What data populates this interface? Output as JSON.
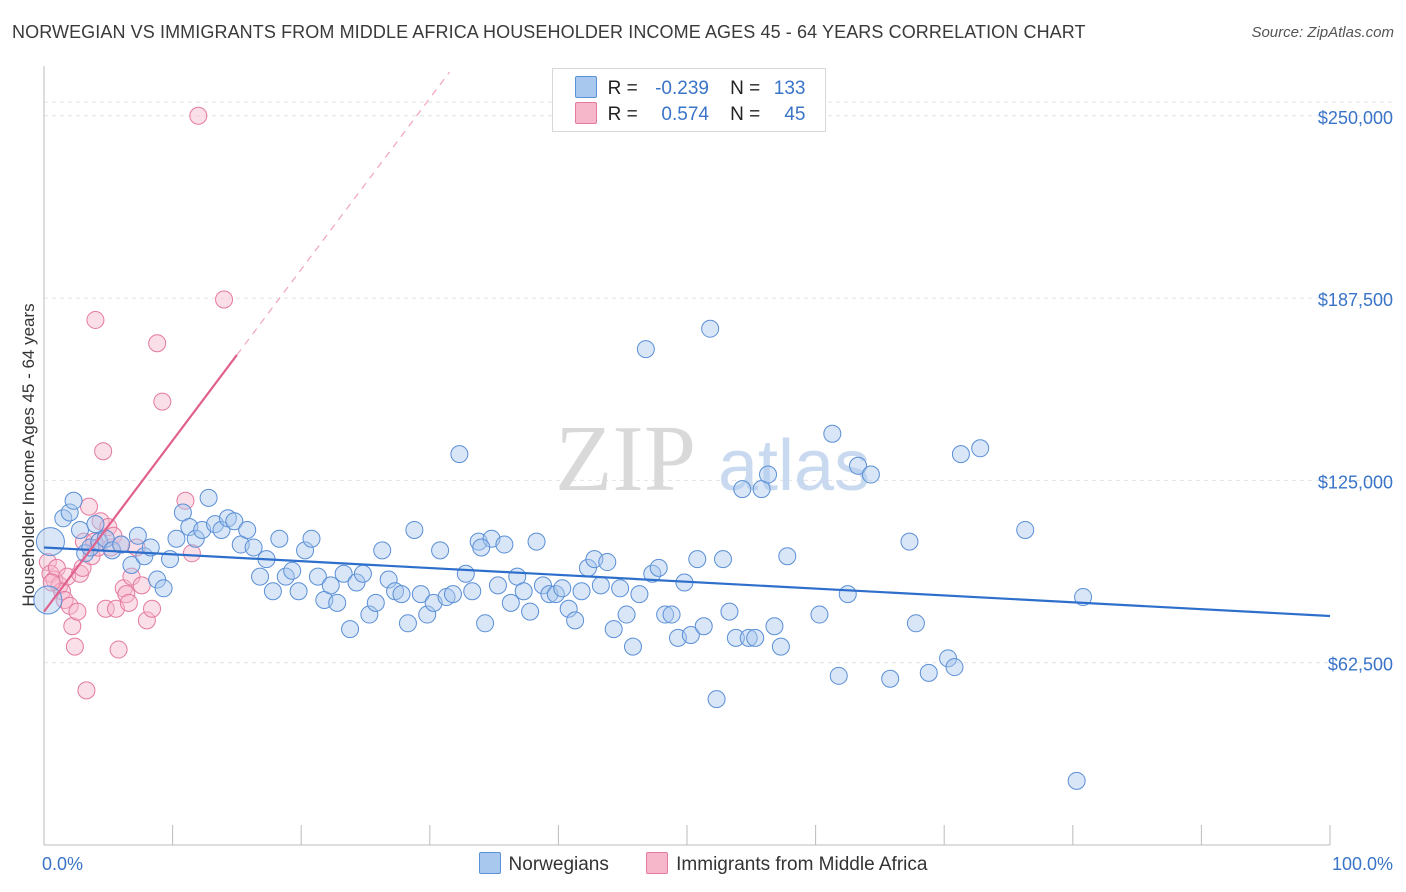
{
  "header": {
    "title": "NORWEGIAN VS IMMIGRANTS FROM MIDDLE AFRICA HOUSEHOLDER INCOME AGES 45 - 64 YEARS CORRELATION CHART",
    "source": "Source: ZipAtlas.com"
  },
  "legend_box": {
    "r_label": "R =",
    "n_label": "N =",
    "rows": [
      {
        "r": "-0.239",
        "n": "133"
      },
      {
        "r": "0.574",
        "n": "45"
      }
    ]
  },
  "bottom_legend": {
    "items": [
      "Norwegians",
      "Immigrants from Middle Africa"
    ]
  },
  "watermark": {
    "zip": "ZIP",
    "atlas": "atlas"
  },
  "colors": {
    "blue_fill": "#a9c8ee",
    "blue_stroke": "#5b8fd6",
    "blue_line": "#2e6fcc",
    "pink_fill": "#f6b7cb",
    "pink_stroke": "#e47aa0",
    "pink_line": "#e0608e",
    "axis_label": "#3a74c8",
    "grid": "#e3e3e3"
  },
  "chart_data": {
    "type": "scatter",
    "title": "NORWEGIAN VS IMMIGRANTS FROM MIDDLE AFRICA HOUSEHOLDER INCOME AGES 45 - 64 YEARS CORRELATION CHART",
    "xlabel": "",
    "ylabel": "Householder Income Ages 45 - 64 years",
    "xlim": [
      0,
      100
    ],
    "ylim": [
      0,
      265000
    ],
    "x_tick_labels": [
      "0.0%",
      "100.0%"
    ],
    "y_ticks": [
      62500,
      125000,
      187500,
      250000
    ],
    "y_tick_labels": [
      "$62,500",
      "$125,000",
      "$187,500",
      "$250,000"
    ],
    "series": [
      {
        "name": "Norwegians",
        "r": -0.239,
        "n": 133,
        "trend": {
          "x": [
            0,
            100
          ],
          "y": [
            102000,
            78500
          ]
        },
        "points": [
          [
            0.3,
            84000
          ],
          [
            0.5,
            104000
          ],
          [
            1.5,
            112000
          ],
          [
            2.0,
            114000
          ],
          [
            2.3,
            118000
          ],
          [
            2.8,
            108000
          ],
          [
            3.2,
            100000
          ],
          [
            3.6,
            102000
          ],
          [
            4.0,
            110000
          ],
          [
            4.3,
            104000
          ],
          [
            4.8,
            105000
          ],
          [
            5.3,
            101000
          ],
          [
            6.0,
            103000
          ],
          [
            6.8,
            96000
          ],
          [
            7.3,
            106000
          ],
          [
            7.8,
            99000
          ],
          [
            8.3,
            102000
          ],
          [
            8.8,
            91000
          ],
          [
            9.3,
            88000
          ],
          [
            9.8,
            98000
          ],
          [
            10.3,
            105000
          ],
          [
            10.8,
            114000
          ],
          [
            11.3,
            109000
          ],
          [
            11.8,
            105000
          ],
          [
            12.3,
            108000
          ],
          [
            12.8,
            119000
          ],
          [
            13.3,
            110000
          ],
          [
            13.8,
            108000
          ],
          [
            14.3,
            112000
          ],
          [
            14.8,
            111000
          ],
          [
            15.3,
            103000
          ],
          [
            15.8,
            108000
          ],
          [
            16.3,
            102000
          ],
          [
            16.8,
            92000
          ],
          [
            17.3,
            98000
          ],
          [
            17.8,
            87000
          ],
          [
            18.3,
            105000
          ],
          [
            18.8,
            92000
          ],
          [
            19.3,
            94000
          ],
          [
            19.8,
            87000
          ],
          [
            20.3,
            101000
          ],
          [
            20.8,
            105000
          ],
          [
            21.3,
            92000
          ],
          [
            21.8,
            84000
          ],
          [
            22.3,
            89000
          ],
          [
            22.8,
            83000
          ],
          [
            23.3,
            93000
          ],
          [
            23.8,
            74000
          ],
          [
            24.3,
            90000
          ],
          [
            24.8,
            93000
          ],
          [
            25.3,
            79000
          ],
          [
            25.8,
            83000
          ],
          [
            26.3,
            101000
          ],
          [
            26.8,
            91000
          ],
          [
            27.3,
            87000
          ],
          [
            27.8,
            86000
          ],
          [
            28.3,
            76000
          ],
          [
            28.8,
            108000
          ],
          [
            29.3,
            86000
          ],
          [
            29.8,
            79000
          ],
          [
            30.3,
            83000
          ],
          [
            30.8,
            101000
          ],
          [
            31.3,
            85000
          ],
          [
            31.8,
            86000
          ],
          [
            32.3,
            134000
          ],
          [
            32.8,
            93000
          ],
          [
            33.3,
            87000
          ],
          [
            33.8,
            104000
          ],
          [
            34.3,
            76000
          ],
          [
            34.8,
            105000
          ],
          [
            35.3,
            89000
          ],
          [
            35.8,
            103000
          ],
          [
            36.3,
            83000
          ],
          [
            36.8,
            92000
          ],
          [
            37.3,
            87000
          ],
          [
            37.8,
            80000
          ],
          [
            38.3,
            104000
          ],
          [
            38.8,
            89000
          ],
          [
            39.3,
            86000
          ],
          [
            39.8,
            86000
          ],
          [
            40.3,
            88000
          ],
          [
            40.8,
            81000
          ],
          [
            41.3,
            77000
          ],
          [
            41.8,
            87000
          ],
          [
            42.3,
            95000
          ],
          [
            42.8,
            98000
          ],
          [
            43.3,
            89000
          ],
          [
            43.8,
            97000
          ],
          [
            44.3,
            74000
          ],
          [
            44.8,
            88000
          ],
          [
            45.3,
            79000
          ],
          [
            45.8,
            68000
          ],
          [
            46.3,
            86000
          ],
          [
            46.8,
            170000
          ],
          [
            47.3,
            93000
          ],
          [
            47.8,
            95000
          ],
          [
            48.3,
            79000
          ],
          [
            48.8,
            79000
          ],
          [
            49.3,
            71000
          ],
          [
            49.8,
            90000
          ],
          [
            50.3,
            72000
          ],
          [
            50.8,
            98000
          ],
          [
            51.3,
            75000
          ],
          [
            51.8,
            177000
          ],
          [
            52.3,
            50000
          ],
          [
            52.8,
            98000
          ],
          [
            53.3,
            80000
          ],
          [
            53.8,
            71000
          ],
          [
            54.3,
            122000
          ],
          [
            54.8,
            71000
          ],
          [
            55.3,
            71000
          ],
          [
            55.8,
            122000
          ],
          [
            56.3,
            127000
          ],
          [
            56.8,
            75000
          ],
          [
            57.3,
            68000
          ],
          [
            57.8,
            99000
          ],
          [
            60.3,
            79000
          ],
          [
            61.3,
            141000
          ],
          [
            61.8,
            58000
          ],
          [
            63.3,
            130000
          ],
          [
            64.3,
            127000
          ],
          [
            65.8,
            57000
          ],
          [
            67.3,
            104000
          ],
          [
            67.8,
            76000
          ],
          [
            68.8,
            59000
          ],
          [
            70.3,
            64000
          ],
          [
            70.8,
            61000
          ],
          [
            71.3,
            134000
          ],
          [
            72.8,
            136000
          ],
          [
            76.3,
            108000
          ],
          [
            80.3,
            22000
          ],
          [
            80.8,
            85000
          ],
          [
            62.5,
            86000
          ],
          [
            34.0,
            102000
          ]
        ]
      },
      {
        "name": "Immigrants from Middle Africa",
        "r": 0.574,
        "n": 45,
        "trend": {
          "x": [
            0,
            15
          ],
          "y": [
            80000,
            168000
          ]
        },
        "points": [
          [
            0.3,
            97000
          ],
          [
            0.5,
            93000
          ],
          [
            0.8,
            91000
          ],
          [
            1.0,
            95000
          ],
          [
            1.2,
            89000
          ],
          [
            1.4,
            87000
          ],
          [
            1.6,
            84000
          ],
          [
            1.8,
            92000
          ],
          [
            2.0,
            82000
          ],
          [
            2.2,
            75000
          ],
          [
            2.4,
            68000
          ],
          [
            2.6,
            80000
          ],
          [
            2.8,
            93000
          ],
          [
            3.0,
            95000
          ],
          [
            3.1,
            104000
          ],
          [
            3.3,
            53000
          ],
          [
            3.5,
            116000
          ],
          [
            3.7,
            99000
          ],
          [
            3.9,
            104000
          ],
          [
            4.0,
            180000
          ],
          [
            4.2,
            102000
          ],
          [
            4.4,
            111000
          ],
          [
            4.6,
            135000
          ],
          [
            4.8,
            81000
          ],
          [
            5.0,
            109000
          ],
          [
            5.2,
            102000
          ],
          [
            5.4,
            106000
          ],
          [
            5.6,
            81000
          ],
          [
            5.8,
            67000
          ],
          [
            6.0,
            103000
          ],
          [
            6.2,
            88000
          ],
          [
            6.4,
            86000
          ],
          [
            6.6,
            83000
          ],
          [
            6.8,
            92000
          ],
          [
            7.2,
            102000
          ],
          [
            7.6,
            89000
          ],
          [
            8.0,
            77000
          ],
          [
            8.4,
            81000
          ],
          [
            8.8,
            172000
          ],
          [
            9.2,
            152000
          ],
          [
            11.0,
            118000
          ],
          [
            11.5,
            100000
          ],
          [
            14.0,
            187000
          ],
          [
            12.0,
            250000
          ],
          [
            0.6,
            90000
          ]
        ]
      }
    ]
  }
}
